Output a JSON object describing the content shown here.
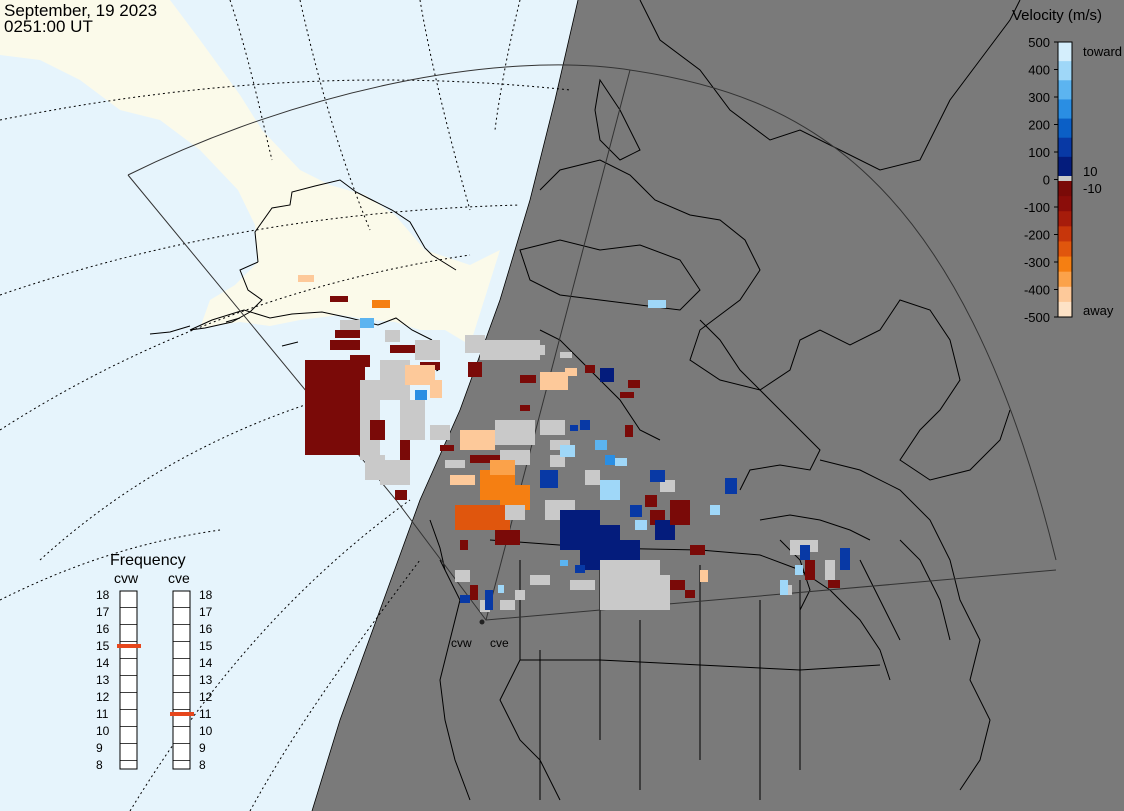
{
  "header": {
    "date": "September, 19 2023",
    "time": "0251:00 UT"
  },
  "colorbar": {
    "title": "Velocity (m/s)",
    "ticks": [
      "500",
      "400",
      "300",
      "200",
      "100",
      "0",
      "-100",
      "-200",
      "-300",
      "-400",
      "-500"
    ],
    "small_pos": "10",
    "small_neg": "-10",
    "toward_label": "toward",
    "away_label": "away",
    "colors": {
      "toward": [
        "#d4eefc",
        "#9fd7f8",
        "#5cb4f0",
        "#2a8ee3",
        "#0b5fc6",
        "#0839a5",
        "#041c7c"
      ],
      "away": [
        "#7a0a08",
        "#8b0d0a",
        "#a61c0b",
        "#c7360b",
        "#e0560d",
        "#f57f12",
        "#fba24a",
        "#fdc99a",
        "#fde2c6"
      ],
      "near_zero": "#c9c9c9"
    }
  },
  "frequency": {
    "title": "Frequency",
    "radars": [
      {
        "name": "cvw",
        "mhz": 15
      },
      {
        "name": "cve",
        "mhz": 11
      }
    ],
    "scale": [
      "18",
      "17",
      "16",
      "15",
      "14",
      "13",
      "12",
      "11",
      "10",
      "9",
      "8"
    ]
  },
  "radar_sites": [
    "cvw",
    "cve"
  ],
  "colors": {
    "night": "#7a7a7a",
    "ocean_day": "#e6f4fc",
    "land_day": "#fbfaea",
    "ground_scatter": "#c9c9c9"
  }
}
